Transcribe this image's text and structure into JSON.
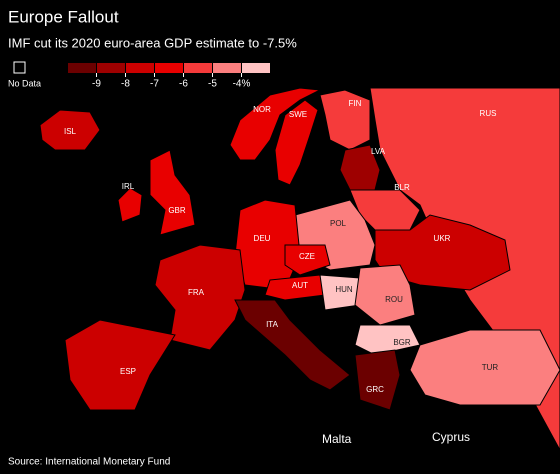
{
  "title": "Europe Fallout",
  "subtitle": "IMF cut its 2020 euro-area GDP estimate to -7.5%",
  "legend": {
    "no_data": "No Data",
    "colors": [
      "#6b0000",
      "#9e0000",
      "#cc0000",
      "#e80000",
      "#f53b3b",
      "#fb7f7f",
      "#ffc3c3"
    ],
    "ticks": [
      -9,
      -8,
      -7,
      -6,
      -5,
      {
        "value": -4,
        "label": "-4%"
      }
    ]
  },
  "regions": [
    {
      "label": "ISL",
      "value": -7.2
    },
    {
      "label": "NOR",
      "value": -6.3
    },
    {
      "label": "SWE",
      "value": -6.8
    },
    {
      "label": "FIN",
      "value": -6.0
    },
    {
      "label": "RUS",
      "value": -5.5
    },
    {
      "label": "LVA",
      "value": -8.6
    },
    {
      "label": "BLR",
      "value": -6.0
    },
    {
      "label": "IRL",
      "value": -6.8
    },
    {
      "label": "GBR",
      "value": -6.5
    },
    {
      "label": "POL",
      "value": -4.6
    },
    {
      "label": "DEU",
      "value": -7.0
    },
    {
      "label": "CZE",
      "value": -6.5
    },
    {
      "label": "UKR",
      "value": -7.7
    },
    {
      "label": "FRA",
      "value": -7.2
    },
    {
      "label": "AUT",
      "value": -7.0
    },
    {
      "label": "HUN",
      "value": -3.1
    },
    {
      "label": "ROU",
      "value": -5.0
    },
    {
      "label": "ITA",
      "value": -9.1
    },
    {
      "label": "BGR",
      "value": -4.0
    },
    {
      "label": "ESP",
      "value": -8.0
    },
    {
      "label": "GRC",
      "value": -10.0
    },
    {
      "label": "TUR",
      "value": -5.0
    }
  ],
  "annotations": [
    "Malta",
    "Cyprus"
  ],
  "source": "Source: International Monetary Fund"
}
